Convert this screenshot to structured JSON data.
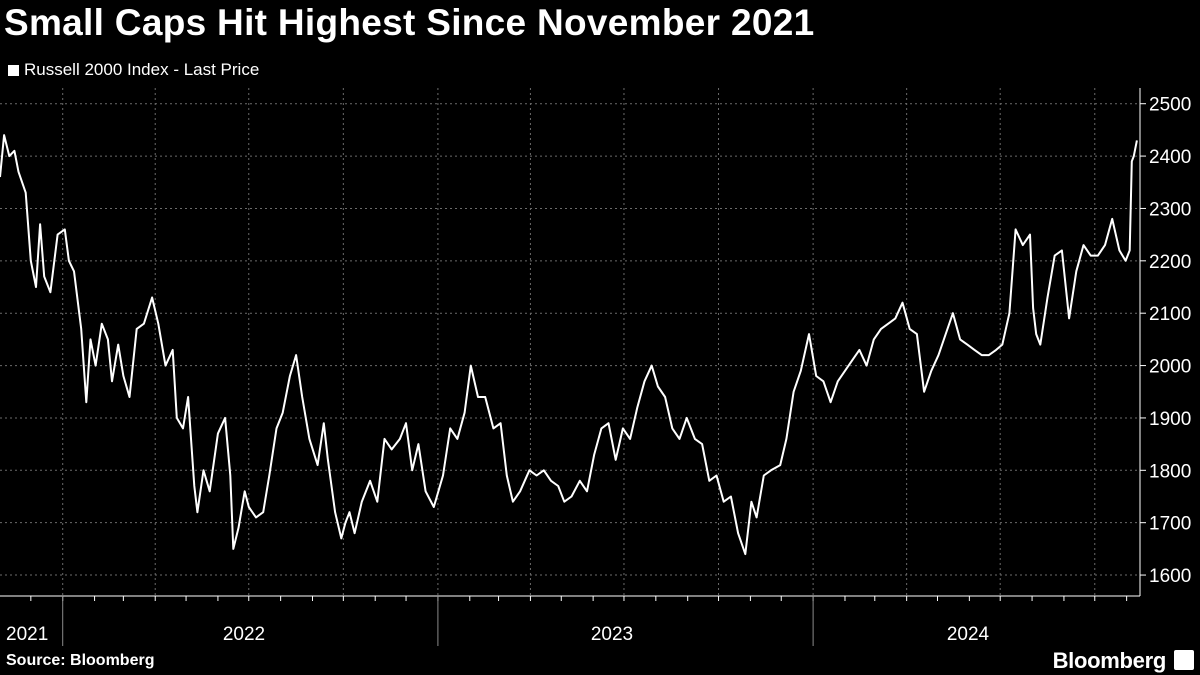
{
  "chart_data": {
    "type": "line",
    "title": "Small Caps Hit Highest Since November 2021",
    "series": [
      {
        "name": "Russell 2000 Index - Last Price",
        "color": "#ffffff",
        "points": [
          [
            "2021-11-01",
            2360
          ],
          [
            "2021-11-05",
            2440
          ],
          [
            "2021-11-10",
            2400
          ],
          [
            "2021-11-15",
            2410
          ],
          [
            "2021-11-19",
            2370
          ],
          [
            "2021-11-26",
            2330
          ],
          [
            "2021-12-01",
            2200
          ],
          [
            "2021-12-06",
            2150
          ],
          [
            "2021-12-10",
            2270
          ],
          [
            "2021-12-14",
            2170
          ],
          [
            "2021-12-20",
            2140
          ],
          [
            "2021-12-27",
            2250
          ],
          [
            "2022-01-03",
            2260
          ],
          [
            "2022-01-07",
            2200
          ],
          [
            "2022-01-12",
            2180
          ],
          [
            "2022-01-19",
            2070
          ],
          [
            "2022-01-24",
            1930
          ],
          [
            "2022-01-28",
            2050
          ],
          [
            "2022-02-02",
            2000
          ],
          [
            "2022-02-08",
            2080
          ],
          [
            "2022-02-14",
            2050
          ],
          [
            "2022-02-18",
            1970
          ],
          [
            "2022-02-24",
            2040
          ],
          [
            "2022-03-01",
            1980
          ],
          [
            "2022-03-07",
            1940
          ],
          [
            "2022-03-14",
            2070
          ],
          [
            "2022-03-21",
            2080
          ],
          [
            "2022-03-29",
            2130
          ],
          [
            "2022-04-04",
            2080
          ],
          [
            "2022-04-11",
            2000
          ],
          [
            "2022-04-18",
            2030
          ],
          [
            "2022-04-22",
            1900
          ],
          [
            "2022-04-28",
            1880
          ],
          [
            "2022-05-03",
            1940
          ],
          [
            "2022-05-09",
            1770
          ],
          [
            "2022-05-12",
            1720
          ],
          [
            "2022-05-18",
            1800
          ],
          [
            "2022-05-24",
            1760
          ],
          [
            "2022-06-01",
            1870
          ],
          [
            "2022-06-08",
            1900
          ],
          [
            "2022-06-13",
            1790
          ],
          [
            "2022-06-16",
            1650
          ],
          [
            "2022-06-21",
            1690
          ],
          [
            "2022-06-27",
            1760
          ],
          [
            "2022-07-01",
            1730
          ],
          [
            "2022-07-08",
            1710
          ],
          [
            "2022-07-15",
            1720
          ],
          [
            "2022-07-21",
            1790
          ],
          [
            "2022-07-28",
            1880
          ],
          [
            "2022-08-03",
            1910
          ],
          [
            "2022-08-10",
            1980
          ],
          [
            "2022-08-16",
            2020
          ],
          [
            "2022-08-22",
            1940
          ],
          [
            "2022-08-29",
            1860
          ],
          [
            "2022-09-06",
            1810
          ],
          [
            "2022-09-12",
            1890
          ],
          [
            "2022-09-16",
            1820
          ],
          [
            "2022-09-23",
            1720
          ],
          [
            "2022-09-29",
            1670
          ],
          [
            "2022-10-03",
            1700
          ],
          [
            "2022-10-07",
            1720
          ],
          [
            "2022-10-12",
            1680
          ],
          [
            "2022-10-19",
            1740
          ],
          [
            "2022-10-27",
            1780
          ],
          [
            "2022-11-03",
            1740
          ],
          [
            "2022-11-10",
            1860
          ],
          [
            "2022-11-17",
            1840
          ],
          [
            "2022-11-25",
            1860
          ],
          [
            "2022-12-01",
            1890
          ],
          [
            "2022-12-07",
            1800
          ],
          [
            "2022-12-13",
            1850
          ],
          [
            "2022-12-20",
            1760
          ],
          [
            "2022-12-28",
            1730
          ],
          [
            "2023-01-06",
            1790
          ],
          [
            "2023-01-13",
            1880
          ],
          [
            "2023-01-20",
            1860
          ],
          [
            "2023-01-27",
            1910
          ],
          [
            "2023-02-02",
            2000
          ],
          [
            "2023-02-09",
            1940
          ],
          [
            "2023-02-16",
            1940
          ],
          [
            "2023-02-24",
            1880
          ],
          [
            "2023-03-03",
            1890
          ],
          [
            "2023-03-09",
            1790
          ],
          [
            "2023-03-15",
            1740
          ],
          [
            "2023-03-22",
            1760
          ],
          [
            "2023-03-31",
            1800
          ],
          [
            "2023-04-07",
            1790
          ],
          [
            "2023-04-14",
            1800
          ],
          [
            "2023-04-21",
            1780
          ],
          [
            "2023-04-28",
            1770
          ],
          [
            "2023-05-04",
            1740
          ],
          [
            "2023-05-11",
            1750
          ],
          [
            "2023-05-19",
            1780
          ],
          [
            "2023-05-26",
            1760
          ],
          [
            "2023-06-02",
            1830
          ],
          [
            "2023-06-09",
            1880
          ],
          [
            "2023-06-16",
            1890
          ],
          [
            "2023-06-23",
            1820
          ],
          [
            "2023-06-30",
            1880
          ],
          [
            "2023-07-07",
            1860
          ],
          [
            "2023-07-14",
            1920
          ],
          [
            "2023-07-21",
            1970
          ],
          [
            "2023-07-28",
            2000
          ],
          [
            "2023-08-03",
            1960
          ],
          [
            "2023-08-10",
            1940
          ],
          [
            "2023-08-17",
            1880
          ],
          [
            "2023-08-24",
            1860
          ],
          [
            "2023-08-31",
            1900
          ],
          [
            "2023-09-08",
            1860
          ],
          [
            "2023-09-15",
            1850
          ],
          [
            "2023-09-22",
            1780
          ],
          [
            "2023-09-29",
            1790
          ],
          [
            "2023-10-06",
            1740
          ],
          [
            "2023-10-13",
            1750
          ],
          [
            "2023-10-20",
            1680
          ],
          [
            "2023-10-27",
            1640
          ],
          [
            "2023-11-02",
            1740
          ],
          [
            "2023-11-07",
            1710
          ],
          [
            "2023-11-14",
            1790
          ],
          [
            "2023-11-21",
            1800
          ],
          [
            "2023-11-30",
            1810
          ],
          [
            "2023-12-06",
            1860
          ],
          [
            "2023-12-13",
            1950
          ],
          [
            "2023-12-20",
            1990
          ],
          [
            "2023-12-28",
            2060
          ],
          [
            "2024-01-04",
            1980
          ],
          [
            "2024-01-11",
            1970
          ],
          [
            "2024-01-18",
            1930
          ],
          [
            "2024-01-25",
            1970
          ],
          [
            "2024-02-01",
            1990
          ],
          [
            "2024-02-08",
            2010
          ],
          [
            "2024-02-15",
            2030
          ],
          [
            "2024-02-22",
            2000
          ],
          [
            "2024-02-29",
            2050
          ],
          [
            "2024-03-07",
            2070
          ],
          [
            "2024-03-14",
            2080
          ],
          [
            "2024-03-21",
            2090
          ],
          [
            "2024-03-28",
            2120
          ],
          [
            "2024-04-04",
            2070
          ],
          [
            "2024-04-11",
            2060
          ],
          [
            "2024-04-18",
            1950
          ],
          [
            "2024-04-25",
            1990
          ],
          [
            "2024-05-02",
            2020
          ],
          [
            "2024-05-09",
            2060
          ],
          [
            "2024-05-16",
            2100
          ],
          [
            "2024-05-23",
            2050
          ],
          [
            "2024-05-30",
            2040
          ],
          [
            "2024-06-06",
            2030
          ],
          [
            "2024-06-13",
            2020
          ],
          [
            "2024-06-20",
            2020
          ],
          [
            "2024-06-27",
            2030
          ],
          [
            "2024-07-03",
            2040
          ],
          [
            "2024-07-10",
            2100
          ],
          [
            "2024-07-16",
            2260
          ],
          [
            "2024-07-23",
            2230
          ],
          [
            "2024-07-30",
            2250
          ],
          [
            "2024-08-02",
            2110
          ],
          [
            "2024-08-05",
            2060
          ],
          [
            "2024-08-09",
            2040
          ],
          [
            "2024-08-16",
            2130
          ],
          [
            "2024-08-23",
            2210
          ],
          [
            "2024-08-30",
            2220
          ],
          [
            "2024-09-06",
            2090
          ],
          [
            "2024-09-13",
            2180
          ],
          [
            "2024-09-20",
            2230
          ],
          [
            "2024-09-27",
            2210
          ],
          [
            "2024-10-04",
            2210
          ],
          [
            "2024-10-11",
            2230
          ],
          [
            "2024-10-18",
            2280
          ],
          [
            "2024-10-25",
            2220
          ],
          [
            "2024-10-31",
            2200
          ],
          [
            "2024-11-04",
            2220
          ],
          [
            "2024-11-06",
            2390
          ],
          [
            "2024-11-08",
            2400
          ],
          [
            "2024-11-11",
            2430
          ]
        ]
      }
    ],
    "xlabel": "",
    "ylabel": "",
    "x_ticks": [
      "2021",
      "2022",
      "2023",
      "2024"
    ],
    "y_ticks": [
      1600,
      1700,
      1800,
      1900,
      2000,
      2100,
      2200,
      2300,
      2400,
      2500
    ],
    "xlim": [
      "2021-11-01",
      "2024-11-14"
    ],
    "ylim": [
      1560,
      2530
    ],
    "grid": "vertical-dashed",
    "y_axis_side": "right",
    "legend": "top-left",
    "background": "#000000"
  },
  "footer": {
    "source": "Source: Bloomberg",
    "brand": "Bloomberg"
  }
}
